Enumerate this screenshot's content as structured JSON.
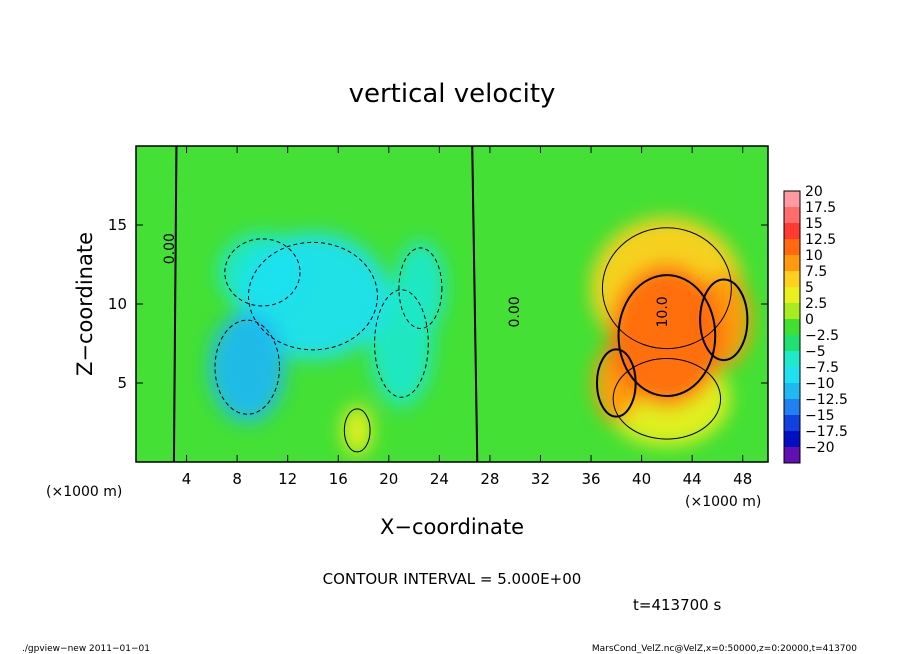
{
  "chart_data": {
    "type": "heatmap",
    "title": "vertical velocity",
    "xlabel": "X−coordinate",
    "ylabel": "Z−coordinate",
    "x_unit_label": "(×1000 m)",
    "y_unit_label": "(×1000 m)",
    "xlim": [
      0,
      50
    ],
    "ylim": [
      0,
      20
    ],
    "x_ticks": [
      4,
      8,
      12,
      16,
      20,
      24,
      28,
      32,
      36,
      40,
      44,
      48
    ],
    "y_ticks": [
      5,
      10,
      15
    ],
    "colorbar": {
      "levels": [
        "20",
        "17.5",
        "15",
        "12.5",
        "10",
        "7.5",
        "5",
        "2.5",
        "0",
        "−2.5",
        "−5",
        "−7.5",
        "−10",
        "−12.5",
        "−15",
        "−17.5",
        "−20"
      ],
      "colors": [
        "#ff9aa0",
        "#ff6c6c",
        "#ff3a30",
        "#ff6a10",
        "#ff9a10",
        "#ffd020",
        "#e8f020",
        "#a8ec20",
        "#40e030",
        "#20e070",
        "#20e8c8",
        "#20e0f0",
        "#20b8f0",
        "#2080f0",
        "#1040e0",
        "#0010c0",
        "#6010b0"
      ]
    },
    "contour_labels": [
      {
        "text": "0.00",
        "x": 3,
        "z": 13.5
      },
      {
        "text": "0.00",
        "x": 30.3,
        "z": 9.5
      },
      {
        "text": "10.0",
        "x": 42,
        "z": 9.5
      }
    ],
    "contour_interval_text": "CONTOUR INTERVAL = 5.000E+00",
    "time_text": "t=413700   s",
    "features": [
      {
        "x": 8.8,
        "z": 6.0,
        "value": -9,
        "rx": 3.0,
        "rz": 3.5
      },
      {
        "x": 14,
        "z": 10.5,
        "value": -7,
        "rx": 6.0,
        "rz": 4.0
      },
      {
        "x": 10,
        "z": 12,
        "value": -5,
        "rx": 3.5,
        "rz": 2.5
      },
      {
        "x": 21,
        "z": 7.5,
        "value": -5,
        "rx": 2.5,
        "rz": 4.0
      },
      {
        "x": 22.5,
        "z": 11,
        "value": -4.5,
        "rx": 2.0,
        "rz": 3.0
      },
      {
        "x": 17.5,
        "z": 2.0,
        "value": 6,
        "rx": 1.2,
        "rz": 1.6
      },
      {
        "x": 42,
        "z": 8.0,
        "value": 13,
        "rx": 4.5,
        "rz": 4.5
      },
      {
        "x": 38,
        "z": 5.0,
        "value": 11,
        "rx": 1.8,
        "rz": 2.5
      },
      {
        "x": 46.5,
        "z": 9.0,
        "value": 10,
        "rx": 2.2,
        "rz": 3.0
      },
      {
        "x": 42,
        "z": 11,
        "value": 7,
        "rx": 6.0,
        "rz": 4.5
      },
      {
        "x": 42,
        "z": 4,
        "value": 5,
        "rx": 5.0,
        "rz": 3.0
      }
    ]
  },
  "footer": {
    "left": "./gpview−new   2011−01−01",
    "right": "MarsCond_VelZ.nc@VelZ,x=0:50000,z=0:20000,t=413700"
  }
}
